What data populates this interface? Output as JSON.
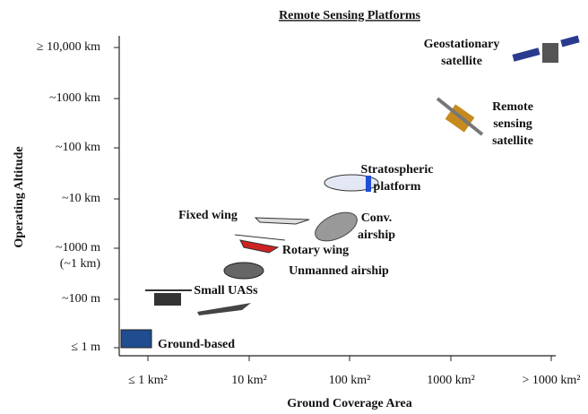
{
  "title": "Remote Sensing Platforms",
  "y_axis": {
    "label": "Operating Altitude",
    "ticks": [
      "≥ 10,000 km",
      "~1000 km",
      "~100 km",
      "~10 km",
      "~1000 m",
      "(~1 km)",
      "~100 m",
      "≤ 1 m"
    ]
  },
  "x_axis": {
    "label": "Ground Coverage Area",
    "ticks": [
      "≤ 1 km²",
      "10 km²",
      "100 km²",
      "1000 km²",
      "> 1000 km²"
    ]
  },
  "platforms": [
    {
      "label": [
        "Geostationary",
        "satellite"
      ]
    },
    {
      "label": [
        "Remote",
        "sensing",
        "satellite"
      ]
    },
    {
      "label": [
        "Stratospheric",
        "platform"
      ]
    },
    {
      "label": [
        "Conv.",
        "airship"
      ]
    },
    {
      "label": [
        "Fixed wing"
      ]
    },
    {
      "label": [
        "Rotary wing"
      ]
    },
    {
      "label": [
        "Unmanned airship"
      ]
    },
    {
      "label": [
        "Small UASs"
      ]
    },
    {
      "label": [
        "Ground-based"
      ]
    }
  ]
}
